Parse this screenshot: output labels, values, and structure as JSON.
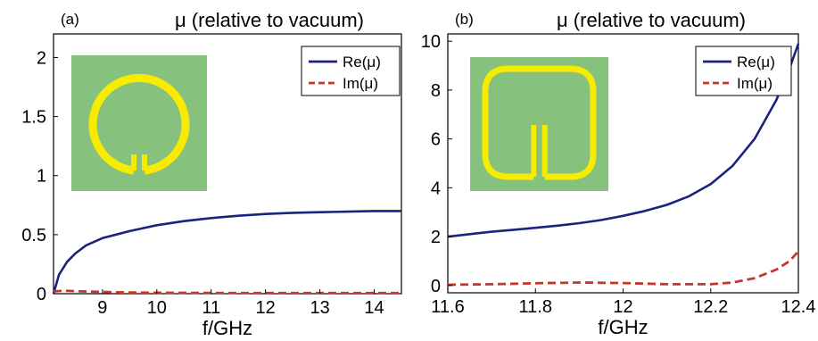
{
  "chart_data": [
    {
      "type": "line",
      "panel_label": "(a)",
      "title": "μ (relative to vacuum)",
      "xlabel": "f/GHz",
      "ylabel": "",
      "xlim": [
        8.1,
        14.5
      ],
      "ylim": [
        0,
        2.2
      ],
      "xticks": [
        9,
        10,
        11,
        12,
        13,
        14
      ],
      "yticks": [
        0,
        0.5,
        1,
        1.5,
        2
      ],
      "grid": false,
      "legend": "top-right",
      "inset": "split-ring-resonator-circular",
      "series": [
        {
          "name": "Re(μ)",
          "color": "#1a237e",
          "style": "solid",
          "x": [
            8.1,
            8.2,
            8.35,
            8.5,
            8.7,
            9.0,
            9.5,
            10.0,
            10.5,
            11.0,
            11.5,
            12.0,
            12.5,
            13.0,
            13.5,
            14.0,
            14.5
          ],
          "y": [
            0.0,
            0.16,
            0.27,
            0.34,
            0.41,
            0.47,
            0.53,
            0.58,
            0.615,
            0.64,
            0.66,
            0.675,
            0.685,
            0.69,
            0.695,
            0.7,
            0.7
          ]
        },
        {
          "name": "Im(μ)",
          "color": "#c0392b",
          "style": "dashed",
          "x": [
            8.1,
            8.3,
            8.6,
            9.0,
            9.5,
            10.0,
            11.0,
            12.0,
            13.0,
            14.0,
            14.5
          ],
          "y": [
            0.02,
            0.025,
            0.02,
            0.015,
            0.01,
            0.008,
            0.006,
            0.005,
            0.005,
            0.005,
            0.005
          ]
        }
      ]
    },
    {
      "type": "line",
      "panel_label": "(b)",
      "title": "μ (relative to vacuum)",
      "xlabel": "f/GHz",
      "ylabel": "",
      "xlim": [
        11.6,
        12.4
      ],
      "ylim": [
        -0.3,
        10.3
      ],
      "xticks": [
        11.6,
        11.8,
        12,
        12.2,
        12.4
      ],
      "yticks": [
        0,
        2,
        4,
        6,
        8,
        10
      ],
      "grid": false,
      "legend": "top-right",
      "inset": "split-ring-resonator-square",
      "series": [
        {
          "name": "Re(μ)",
          "color": "#1a237e",
          "style": "solid",
          "x": [
            11.6,
            11.65,
            11.7,
            11.75,
            11.8,
            11.85,
            11.9,
            11.95,
            12.0,
            12.05,
            12.1,
            12.15,
            12.2,
            12.25,
            12.3,
            12.35,
            12.38,
            12.4
          ],
          "y": [
            2.0,
            2.1,
            2.2,
            2.28,
            2.36,
            2.45,
            2.55,
            2.68,
            2.85,
            3.05,
            3.3,
            3.65,
            4.15,
            4.9,
            6.0,
            7.6,
            8.9,
            9.9
          ]
        },
        {
          "name": "Im(μ)",
          "color": "#c0392b",
          "style": "dashed",
          "x": [
            11.6,
            11.7,
            11.8,
            11.9,
            12.0,
            12.1,
            12.2,
            12.25,
            12.3,
            12.35,
            12.38,
            12.4
          ],
          "y": [
            0.03,
            0.05,
            0.09,
            0.12,
            0.1,
            0.05,
            0.05,
            0.12,
            0.3,
            0.65,
            1.0,
            1.4
          ]
        }
      ]
    }
  ]
}
